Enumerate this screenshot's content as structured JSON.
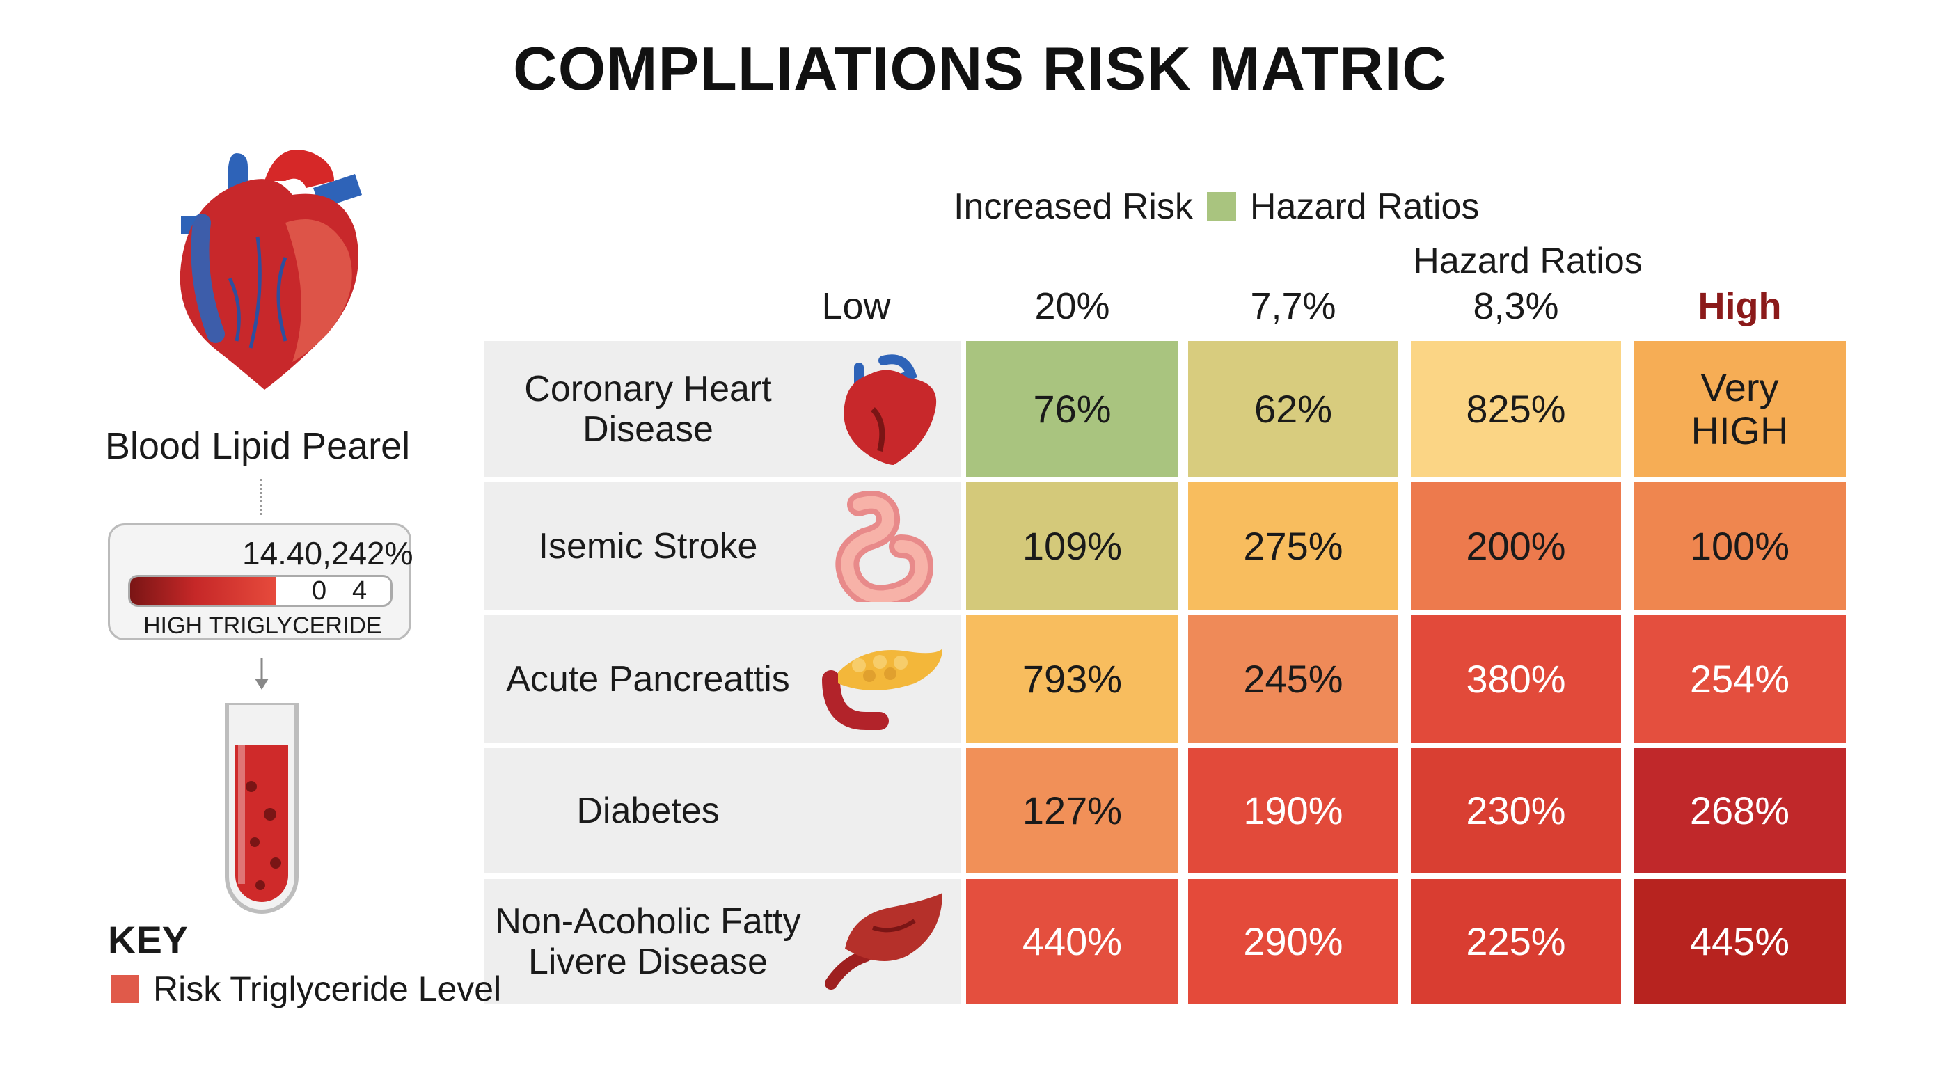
{
  "title": "COMPLLIATIONS RISK MATRIC",
  "legend": {
    "label_left": "Increased Risk",
    "label_right": "Hazard Ratios",
    "swatch_color": "#a9c47f"
  },
  "hazard_group_label": "Hazard Ratios",
  "left_panel": {
    "heart_icon": "heart-icon",
    "title": "Blood Lipid Pearel",
    "value": "14.40,242%",
    "bar_min": "0",
    "bar_max": "4",
    "bar_fill_fraction": 0.56,
    "caption": "HIGH TRIGLYCERIDE",
    "tube_icon": "blood-tube-icon",
    "key_title": "KEY",
    "key_label": "Risk Triglyceride Level",
    "key_color": "#e05a4a"
  },
  "chart_data": {
    "type": "heatmap",
    "columns": [
      "Low",
      "20%",
      "7,7%",
      "8,3%",
      "High"
    ],
    "rows": [
      {
        "label": "Coronary Heart Disease",
        "icon": "heart-icon",
        "values": [
          "76%",
          "62%",
          "825%",
          "Very HIGH"
        ],
        "colors": [
          "#a9c47f",
          "#d8cc7e",
          "#fbd585",
          "#f6ad55"
        ]
      },
      {
        "label": "Isemic Stroke",
        "icon": "stomach-icon",
        "values": [
          "109%",
          "275%",
          "200%",
          "100%"
        ],
        "colors": [
          "#d4c97a",
          "#f8bd5e",
          "#ed7a4d",
          "#ef864f"
        ]
      },
      {
        "label": "Acute Pancreattis",
        "icon": "pancreas-icon",
        "values": [
          "793%",
          "245%",
          "380%",
          "254%"
        ],
        "colors": [
          "#f8bd5e",
          "#ef8a58",
          "#e24a3a",
          "#e44f3e"
        ]
      },
      {
        "label": "Diabetes",
        "icon": "",
        "values": [
          "127%",
          "190%",
          "230%",
          "268%"
        ],
        "colors": [
          "#f19058",
          "#e24a3a",
          "#d93f32",
          "#c0282a"
        ]
      },
      {
        "label": "Non-Acoholic Fatty Livere Disease",
        "icon": "liver-icon",
        "values": [
          "440%",
          "290%",
          "225%",
          "445%"
        ],
        "colors": [
          "#e44f3e",
          "#e44a3a",
          "#d93d31",
          "#b7231f"
        ]
      }
    ]
  }
}
